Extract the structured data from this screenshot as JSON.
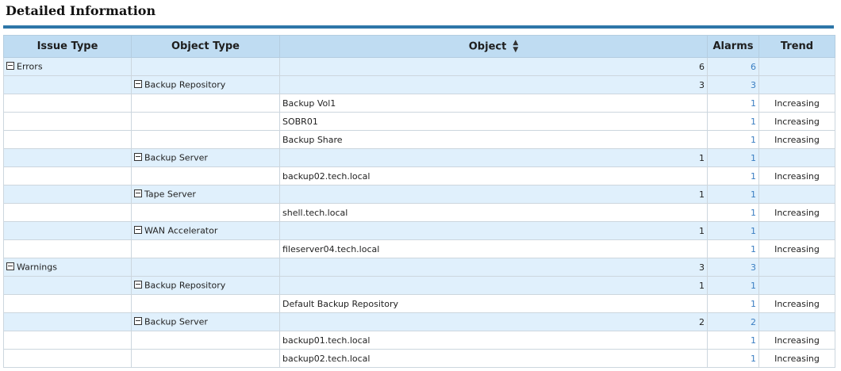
{
  "title": "Detailed Information",
  "columns": {
    "issue_type": "Issue Type",
    "object_type": "Object Type",
    "object": "Object",
    "alarms": "Alarms",
    "trend": "Trend"
  },
  "rows": [
    {
      "kind": "issue",
      "issue_type": "Errors",
      "count": "6",
      "alarms": "6"
    },
    {
      "kind": "objtype",
      "object_type": "Backup Repository",
      "count": "3",
      "alarms": "3"
    },
    {
      "kind": "object",
      "object": "Backup Vol1",
      "alarms": "1",
      "trend": "Increasing"
    },
    {
      "kind": "object",
      "object": "SOBR01",
      "alarms": "1",
      "trend": "Increasing"
    },
    {
      "kind": "object",
      "object": "Backup Share",
      "alarms": "1",
      "trend": "Increasing"
    },
    {
      "kind": "objtype",
      "object_type": "Backup Server",
      "count": "1",
      "alarms": "1"
    },
    {
      "kind": "object",
      "object": "backup02.tech.local",
      "alarms": "1",
      "trend": "Increasing"
    },
    {
      "kind": "objtype",
      "object_type": "Tape Server",
      "count": "1",
      "alarms": "1"
    },
    {
      "kind": "object",
      "object": "shell.tech.local",
      "alarms": "1",
      "trend": "Increasing"
    },
    {
      "kind": "objtype",
      "object_type": "WAN Accelerator",
      "count": "1",
      "alarms": "1"
    },
    {
      "kind": "object",
      "object": "fileserver04.tech.local",
      "alarms": "1",
      "trend": "Increasing"
    },
    {
      "kind": "issue",
      "issue_type": "Warnings",
      "count": "3",
      "alarms": "3"
    },
    {
      "kind": "objtype",
      "object_type": "Backup Repository",
      "count": "1",
      "alarms": "1"
    },
    {
      "kind": "object",
      "object": "Default Backup Repository",
      "alarms": "1",
      "trend": "Increasing"
    },
    {
      "kind": "objtype",
      "object_type": "Backup Server",
      "count": "2",
      "alarms": "2"
    },
    {
      "kind": "object",
      "object": "backup01.tech.local",
      "alarms": "1",
      "trend": "Increasing"
    },
    {
      "kind": "object",
      "object": "backup02.tech.local",
      "alarms": "1",
      "trend": "Increasing"
    }
  ],
  "colors": {
    "header_bg": "#bfdcf2",
    "group_row_bg": "#e0f0fc",
    "title_rule": "#2e76a8",
    "alarm_link": "#3a7ec2"
  },
  "icons": {
    "collapse": "minus-square-icon",
    "sort": "sort-updown-icon"
  }
}
